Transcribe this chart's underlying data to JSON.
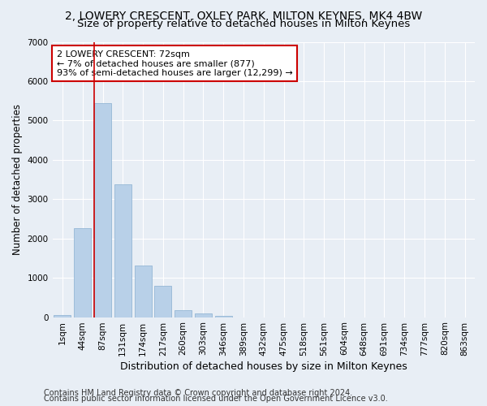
{
  "title1": "2, LOWERY CRESCENT, OXLEY PARK, MILTON KEYNES, MK4 4BW",
  "title2": "Size of property relative to detached houses in Milton Keynes",
  "xlabel": "Distribution of detached houses by size in Milton Keynes",
  "ylabel": "Number of detached properties",
  "categories": [
    "1sqm",
    "44sqm",
    "87sqm",
    "131sqm",
    "174sqm",
    "217sqm",
    "260sqm",
    "303sqm",
    "346sqm",
    "389sqm",
    "432sqm",
    "475sqm",
    "518sqm",
    "561sqm",
    "604sqm",
    "648sqm",
    "691sqm",
    "734sqm",
    "777sqm",
    "820sqm",
    "863sqm"
  ],
  "bar_heights": [
    50,
    2270,
    5450,
    3380,
    1320,
    800,
    175,
    90,
    30,
    0,
    0,
    0,
    0,
    0,
    0,
    0,
    0,
    0,
    0,
    0,
    0
  ],
  "bar_color": "#b8d0e8",
  "bar_edge_color": "#89afd0",
  "background_color": "#e8eef5",
  "grid_color": "#ffffff",
  "vline_color": "#cc0000",
  "vline_x": 1.57,
  "annotation_text": "2 LOWERY CRESCENT: 72sqm\n← 7% of detached houses are smaller (877)\n93% of semi-detached houses are larger (12,299) →",
  "annotation_box_color": "#ffffff",
  "annotation_box_edge": "#cc0000",
  "ylim": [
    0,
    7000
  ],
  "yticks": [
    0,
    1000,
    2000,
    3000,
    4000,
    5000,
    6000,
    7000
  ],
  "footer1": "Contains HM Land Registry data © Crown copyright and database right 2024.",
  "footer2": "Contains public sector information licensed under the Open Government Licence v3.0.",
  "title1_fontsize": 10,
  "title2_fontsize": 9.5,
  "xlabel_fontsize": 9,
  "ylabel_fontsize": 8.5,
  "tick_fontsize": 7.5,
  "footer_fontsize": 7,
  "annot_fontsize": 8
}
